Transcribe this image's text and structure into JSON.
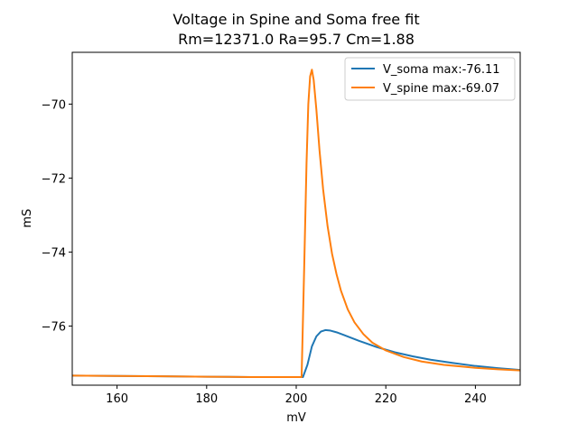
{
  "chart_data": {
    "type": "line",
    "title": "Voltage in Spine and Soma free fit",
    "subtitle": "Rm=12371.0 Ra=95.7 Cm=1.88",
    "xlabel": "mV",
    "ylabel": "mS",
    "xlim": [
      150,
      250
    ],
    "ylim": [
      -77.6,
      -68.6
    ],
    "xticks": [
      160,
      180,
      200,
      220,
      240
    ],
    "xtick_labels": [
      "160",
      "180",
      "200",
      "220",
      "240"
    ],
    "yticks": [
      -70,
      -72,
      -74,
      -76
    ],
    "ytick_labels": [
      "−70",
      "−72",
      "−74",
      "−76"
    ],
    "grid": false,
    "legend_position": "top-right",
    "series": [
      {
        "name": "V_soma max:-76.11",
        "color": "#1f77b4",
        "x": [
          150,
          160,
          170,
          180,
          190,
          200,
          201.5,
          202.5,
          203.5,
          204.5,
          205.5,
          206.5,
          207.5,
          209,
          211,
          214,
          218,
          222,
          226,
          230,
          235,
          240,
          245,
          250
        ],
        "y": [
          -77.34,
          -77.35,
          -77.36,
          -77.37,
          -77.38,
          -77.38,
          -77.38,
          -77.05,
          -76.55,
          -76.28,
          -76.15,
          -76.11,
          -76.12,
          -76.17,
          -76.26,
          -76.4,
          -76.57,
          -76.71,
          -76.82,
          -76.91,
          -77.0,
          -77.08,
          -77.14,
          -77.19
        ]
      },
      {
        "name": "V_spine max:-69.07",
        "color": "#ff7f0e",
        "x": [
          150,
          160,
          170,
          180,
          190,
          200,
          201.2,
          201.8,
          202.3,
          202.7,
          203.1,
          203.5,
          203.9,
          204.5,
          205.2,
          206,
          207,
          208,
          209,
          210,
          211.5,
          213,
          215,
          217,
          220,
          224,
          228,
          233,
          240,
          245,
          250
        ],
        "y": [
          -77.34,
          -77.35,
          -77.36,
          -77.37,
          -77.38,
          -77.38,
          -77.38,
          -74.3,
          -71.6,
          -70.0,
          -69.25,
          -69.07,
          -69.35,
          -70.15,
          -71.25,
          -72.3,
          -73.3,
          -74.05,
          -74.6,
          -75.05,
          -75.55,
          -75.9,
          -76.22,
          -76.45,
          -76.66,
          -76.84,
          -76.96,
          -77.05,
          -77.13,
          -77.17,
          -77.2
        ]
      }
    ]
  }
}
